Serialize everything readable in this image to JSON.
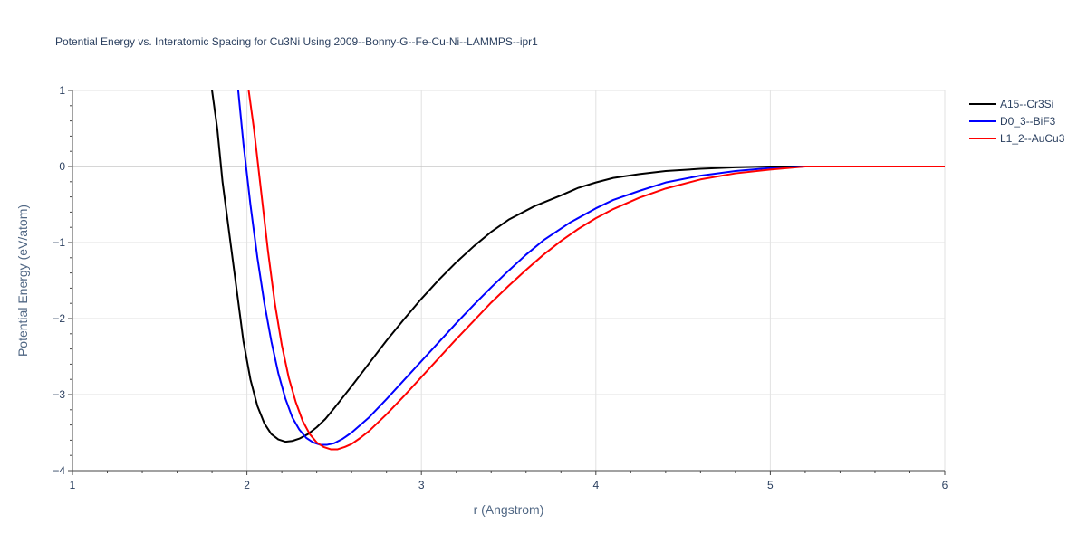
{
  "chart_data": {
    "type": "line",
    "title": "Potential Energy vs. Interatomic Spacing for Cu3Ni Using 2009--Bonny-G--Fe-Cu-Ni--LAMMPS--ipr1",
    "xlabel": "r (Angstrom)",
    "ylabel": "Potential Energy (eV/atom)",
    "xlim": [
      1,
      6
    ],
    "ylim": [
      -4,
      1
    ],
    "x_ticks": [
      1,
      2,
      3,
      4,
      5,
      6
    ],
    "y_ticks": [
      1,
      0,
      -1,
      -2,
      -3,
      -4
    ],
    "x_tick_labels": [
      "1",
      "2",
      "3",
      "4",
      "5",
      "6"
    ],
    "y_tick_labels": [
      "1",
      "0",
      "−1",
      "−2",
      "−3",
      "−4"
    ],
    "grid": true,
    "legend_position": "top-right",
    "series": [
      {
        "name": "A15--Cr3Si",
        "color": "#000000",
        "x": [
          1.8,
          1.83,
          1.86,
          1.9,
          1.94,
          1.98,
          2.02,
          2.06,
          2.1,
          2.14,
          2.18,
          2.22,
          2.26,
          2.3,
          2.35,
          2.4,
          2.45,
          2.5,
          2.6,
          2.7,
          2.8,
          2.9,
          3.0,
          3.1,
          3.2,
          3.3,
          3.4,
          3.5,
          3.65,
          3.8,
          3.9,
          4.0,
          4.1,
          4.25,
          4.4,
          4.6,
          4.8,
          5.0,
          5.2,
          5.5,
          6.0
        ],
        "y": [
          1.0,
          0.5,
          -0.2,
          -0.9,
          -1.6,
          -2.3,
          -2.8,
          -3.15,
          -3.38,
          -3.52,
          -3.59,
          -3.62,
          -3.61,
          -3.58,
          -3.52,
          -3.43,
          -3.32,
          -3.18,
          -2.89,
          -2.59,
          -2.29,
          -2.01,
          -1.74,
          -1.49,
          -1.26,
          -1.05,
          -0.86,
          -0.7,
          -0.52,
          -0.38,
          -0.28,
          -0.21,
          -0.15,
          -0.1,
          -0.06,
          -0.03,
          -0.01,
          0.0,
          0.0,
          0.0,
          0.0
        ]
      },
      {
        "name": "D0_3--BiF3",
        "color": "#0000ff",
        "x": [
          1.95,
          1.98,
          2.02,
          2.06,
          2.1,
          2.14,
          2.18,
          2.22,
          2.26,
          2.3,
          2.34,
          2.38,
          2.42,
          2.46,
          2.5,
          2.55,
          2.6,
          2.7,
          2.8,
          2.9,
          3.0,
          3.1,
          3.2,
          3.3,
          3.4,
          3.5,
          3.6,
          3.7,
          3.85,
          4.0,
          4.1,
          4.25,
          4.4,
          4.6,
          4.8,
          5.0,
          5.2,
          5.5,
          6.0
        ],
        "y": [
          1.0,
          0.3,
          -0.5,
          -1.2,
          -1.8,
          -2.3,
          -2.72,
          -3.05,
          -3.3,
          -3.46,
          -3.57,
          -3.63,
          -3.66,
          -3.66,
          -3.64,
          -3.58,
          -3.5,
          -3.3,
          -3.06,
          -2.81,
          -2.56,
          -2.31,
          -2.06,
          -1.82,
          -1.59,
          -1.37,
          -1.16,
          -0.97,
          -0.74,
          -0.55,
          -0.44,
          -0.32,
          -0.21,
          -0.12,
          -0.06,
          -0.02,
          0.0,
          0.0,
          0.0
        ]
      },
      {
        "name": "L1_2--AuCu3",
        "color": "#ff0000",
        "x": [
          2.01,
          2.04,
          2.08,
          2.12,
          2.16,
          2.2,
          2.24,
          2.28,
          2.32,
          2.36,
          2.4,
          2.44,
          2.48,
          2.52,
          2.56,
          2.6,
          2.65,
          2.7,
          2.8,
          2.9,
          3.0,
          3.1,
          3.2,
          3.3,
          3.4,
          3.5,
          3.6,
          3.7,
          3.8,
          3.9,
          4.0,
          4.1,
          4.25,
          4.4,
          4.6,
          4.8,
          5.0,
          5.2,
          5.5,
          6.0
        ],
        "y": [
          1.0,
          0.5,
          -0.3,
          -1.1,
          -1.8,
          -2.35,
          -2.78,
          -3.1,
          -3.35,
          -3.52,
          -3.63,
          -3.69,
          -3.72,
          -3.72,
          -3.69,
          -3.65,
          -3.57,
          -3.48,
          -3.26,
          -3.02,
          -2.77,
          -2.52,
          -2.27,
          -2.03,
          -1.79,
          -1.57,
          -1.36,
          -1.16,
          -0.98,
          -0.82,
          -0.68,
          -0.56,
          -0.41,
          -0.29,
          -0.17,
          -0.09,
          -0.04,
          0.0,
          0.0,
          0.0
        ]
      }
    ]
  }
}
